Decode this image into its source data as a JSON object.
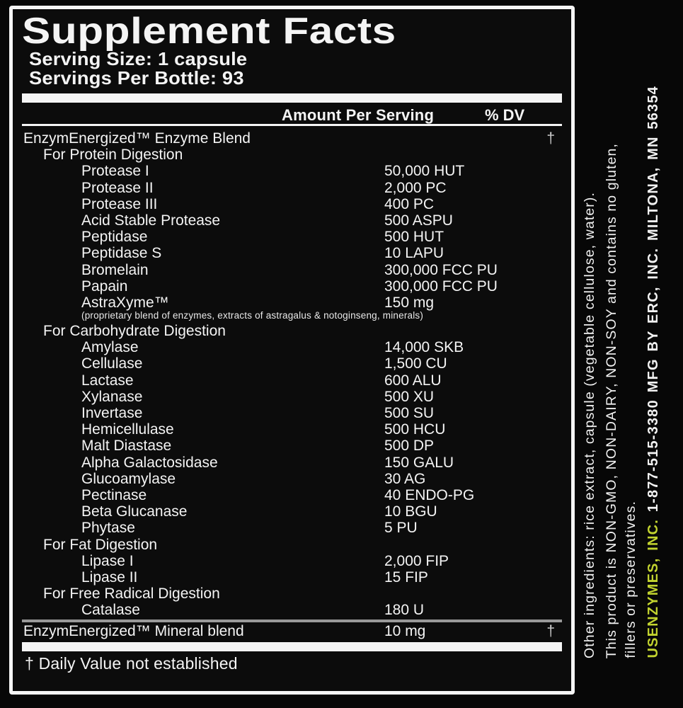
{
  "label": {
    "title": "Supplement Facts",
    "serving_size": "Serving Size: 1 capsule",
    "servings_per_bottle": "Servings Per Bottle: 93",
    "amount_header": "Amount Per Serving",
    "dv_header": "% DV",
    "rows": [
      {
        "type": "blend",
        "indent": 0,
        "name": "EnzymEnergized™ Enzyme Blend",
        "amount": "",
        "dv": "†"
      },
      {
        "type": "group",
        "indent": 1,
        "name": "For Protein Digestion"
      },
      {
        "type": "item",
        "indent": 2,
        "name": "Protease I",
        "amount": "50,000 HUT"
      },
      {
        "type": "item",
        "indent": 2,
        "name": "Protease II",
        "amount": "2,000 PC"
      },
      {
        "type": "item",
        "indent": 2,
        "name": "Protease III",
        "amount": "400 PC"
      },
      {
        "type": "item",
        "indent": 2,
        "name": "Acid Stable Protease",
        "amount": "500 ASPU"
      },
      {
        "type": "item",
        "indent": 2,
        "name": "Peptidase",
        "amount": "500 HUT"
      },
      {
        "type": "item",
        "indent": 2,
        "name": "Peptidase S",
        "amount": "10 LAPU"
      },
      {
        "type": "item",
        "indent": 2,
        "name": "Bromelain",
        "amount": "300,000 FCC PU"
      },
      {
        "type": "item",
        "indent": 2,
        "name": "Papain",
        "amount": "300,000 FCC PU"
      },
      {
        "type": "item",
        "indent": 2,
        "name": "AstraXyme™",
        "amount": "150 mg"
      },
      {
        "type": "note",
        "indent": 2,
        "name": "(proprietary blend of enzymes, extracts of astragalus & notoginseng, minerals)"
      },
      {
        "type": "group",
        "indent": 1,
        "name": "For Carbohydrate Digestion"
      },
      {
        "type": "item",
        "indent": 2,
        "name": "Amylase",
        "amount": "14,000 SKB"
      },
      {
        "type": "item",
        "indent": 2,
        "name": "Cellulase",
        "amount": "1,500 CU"
      },
      {
        "type": "item",
        "indent": 2,
        "name": "Lactase",
        "amount": "600 ALU"
      },
      {
        "type": "item",
        "indent": 2,
        "name": "Xylanase",
        "amount": "500 XU"
      },
      {
        "type": "item",
        "indent": 2,
        "name": "Invertase",
        "amount": "500 SU"
      },
      {
        "type": "item",
        "indent": 2,
        "name": "Hemicellulase",
        "amount": "500 HCU"
      },
      {
        "type": "item",
        "indent": 2,
        "name": "Malt Diastase",
        "amount": "500 DP"
      },
      {
        "type": "item",
        "indent": 2,
        "name": "Alpha Galactosidase",
        "amount": "150 GALU"
      },
      {
        "type": "item",
        "indent": 2,
        "name": "Glucoamylase",
        "amount": "30 AG"
      },
      {
        "type": "item",
        "indent": 2,
        "name": "Pectinase",
        "amount": "40 ENDO-PG"
      },
      {
        "type": "item",
        "indent": 2,
        "name": "Beta Glucanase",
        "amount": "10 BGU"
      },
      {
        "type": "item",
        "indent": 2,
        "name": "Phytase",
        "amount": "5 PU"
      },
      {
        "type": "group",
        "indent": 1,
        "name": "For Fat Digestion"
      },
      {
        "type": "item",
        "indent": 2,
        "name": "Lipase I",
        "amount": "2,000 FIP"
      },
      {
        "type": "item",
        "indent": 2,
        "name": "Lipase II",
        "amount": "15 FIP"
      },
      {
        "type": "group",
        "indent": 1,
        "name": "For Free Radical Digestion"
      },
      {
        "type": "item",
        "indent": 2,
        "name": "Catalase",
        "amount": "180 U"
      },
      {
        "type": "rule"
      },
      {
        "type": "blend",
        "indent": 0,
        "name": "EnzymEnergized™ Mineral blend",
        "amount": "10 mg",
        "dv": "†"
      }
    ],
    "footnote": "† Daily Value not established"
  },
  "side_text": {
    "other_ingredients": "Other ingredients: rice extract, capsule (vegetable cellulose, water).",
    "product_claims": "This product is NON-GMO, NON-DAIRY, NON-SOY and contains no gluten,",
    "claims_cont": "fillers or preservatives.",
    "brand": "USENZYMES, INC.",
    "contact": "1-877-515-3380  MFG BY ERC, INC.  MILTONA, MN 56354",
    "brand_color": "#c2d32f"
  },
  "colors": {
    "background": "#070707",
    "panel_border": "#f5f5f5",
    "text": "#f4f4f4",
    "divider_gray": "#999999",
    "brand_green": "#c2d32f"
  }
}
